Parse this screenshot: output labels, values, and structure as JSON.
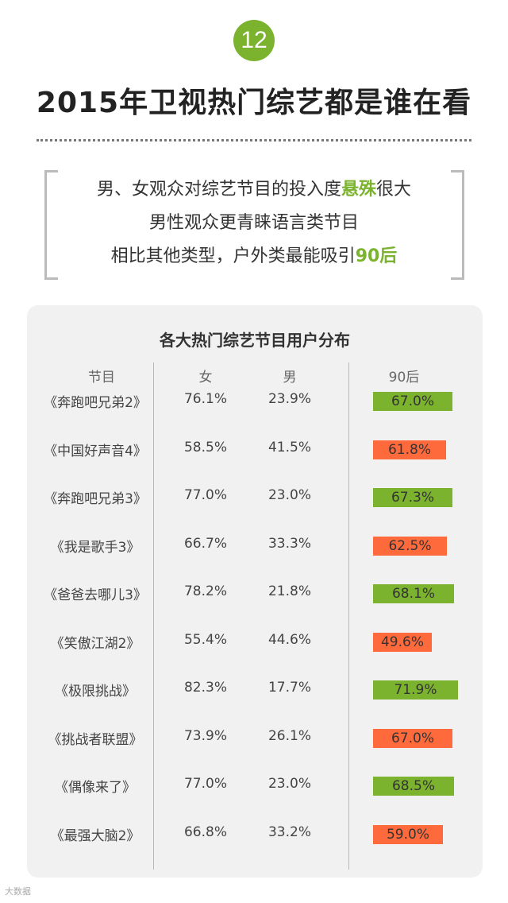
{
  "badge_number": "12",
  "title": "2015年卫视热门综艺都是谁在看",
  "summary": {
    "line1_pre": "男、女观众对综艺节目的投入度",
    "line1_highlight": "悬殊",
    "line1_post": "很大",
    "line2": "男性观众更青睐语言类节目",
    "line3_pre": "相比其他类型，户外类最能吸引",
    "line3_highlight": "90后"
  },
  "colors": {
    "accent": "#7bb32e",
    "bar_green": "#7bb32e",
    "bar_orange": "#ff6a3d"
  },
  "footer": "大数据",
  "chart_data": {
    "type": "table",
    "title": "各大热门综艺节目用户分布",
    "columns": [
      "节目",
      "女",
      "男",
      "90后"
    ],
    "rows": [
      {
        "name": "《奔跑吧兄弟2》",
        "female": "76.1%",
        "male": "23.9%",
        "post90": "67.0%",
        "post90_value": 67.0,
        "color": "green"
      },
      {
        "name": "《中国好声音4》",
        "female": "58.5%",
        "male": "41.5%",
        "post90": "61.8%",
        "post90_value": 61.8,
        "color": "orange"
      },
      {
        "name": "《奔跑吧兄弟3》",
        "female": "77.0%",
        "male": "23.0%",
        "post90": "67.3%",
        "post90_value": 67.3,
        "color": "green"
      },
      {
        "name": "《我是歌手3》",
        "female": "66.7%",
        "male": "33.3%",
        "post90": "62.5%",
        "post90_value": 62.5,
        "color": "orange"
      },
      {
        "name": "《爸爸去哪儿3》",
        "female": "78.2%",
        "male": "21.8%",
        "post90": "68.1%",
        "post90_value": 68.1,
        "color": "green"
      },
      {
        "name": "《笑傲江湖2》",
        "female": "55.4%",
        "male": "44.6%",
        "post90": "49.6%",
        "post90_value": 49.6,
        "color": "orange"
      },
      {
        "name": "《极限挑战》",
        "female": "82.3%",
        "male": "17.7%",
        "post90": "71.9%",
        "post90_value": 71.9,
        "color": "green"
      },
      {
        "name": "《挑战者联盟》",
        "female": "73.9%",
        "male": "26.1%",
        "post90": "67.0%",
        "post90_value": 67.0,
        "color": "orange"
      },
      {
        "name": "《偶像来了》",
        "female": "77.0%",
        "male": "23.0%",
        "post90": "68.5%",
        "post90_value": 68.5,
        "color": "green"
      },
      {
        "name": "《最强大脑2》",
        "female": "66.8%",
        "male": "33.2%",
        "post90": "59.0%",
        "post90_value": 59.0,
        "color": "orange"
      }
    ]
  }
}
